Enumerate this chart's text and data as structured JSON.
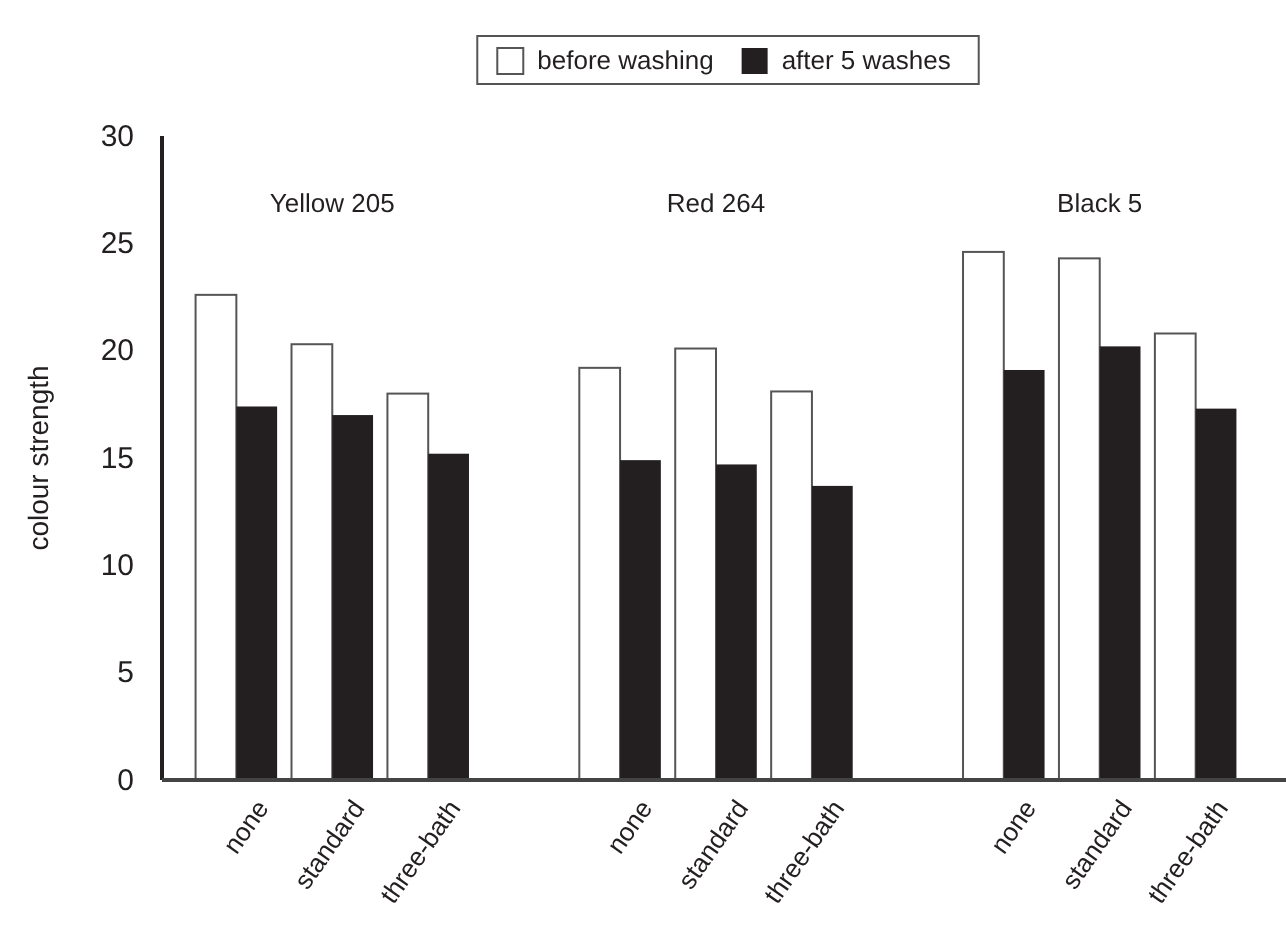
{
  "chart_data": {
    "type": "bar",
    "ylabel": "colour strength",
    "categories": [
      "none",
      "standard",
      "three-bath",
      null,
      "none",
      "standard",
      "three-bath",
      null,
      "none",
      "standard",
      "three-bath"
    ],
    "series": [
      {
        "name": "before washing",
        "color": "#ffffff",
        "values": [
          22.6,
          20.3,
          18.0,
          null,
          19.2,
          20.1,
          18.1,
          null,
          24.6,
          24.3,
          20.8
        ]
      },
      {
        "name": "after 5 washes",
        "color": "#231f20",
        "values": [
          17.4,
          17.0,
          15.2,
          null,
          14.9,
          14.7,
          13.7,
          null,
          19.1,
          20.2,
          17.3
        ]
      }
    ],
    "ylim": [
      0,
      30
    ],
    "yticks": [
      0,
      5,
      10,
      15,
      20,
      25,
      30
    ],
    "grid": false,
    "legend": "top",
    "annotations": [
      "Yellow 205",
      "Red 264",
      "Black 5"
    ]
  }
}
